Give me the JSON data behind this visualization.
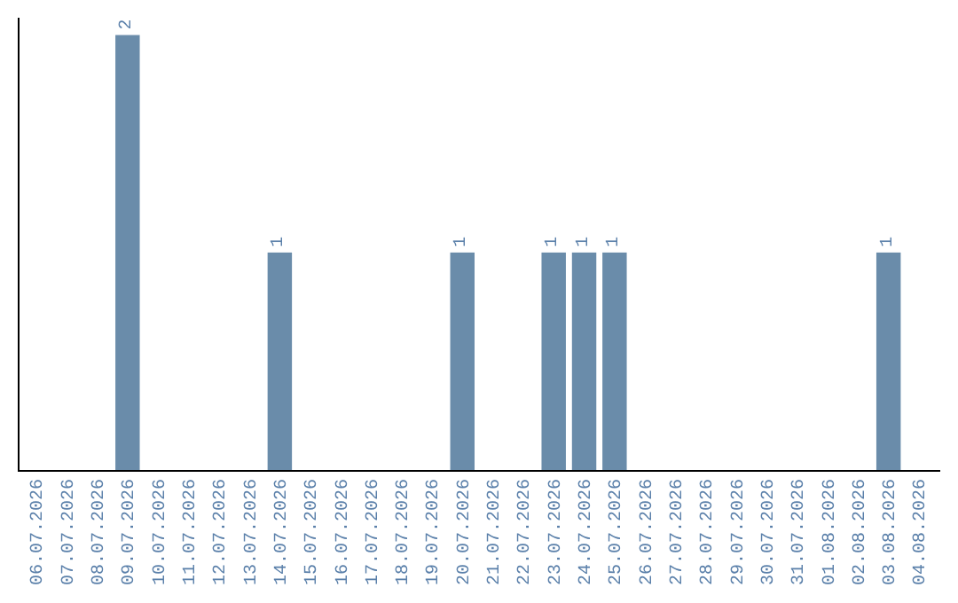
{
  "chart_data": {
    "type": "bar",
    "categories": [
      "06.07.2026",
      "07.07.2026",
      "08.07.2026",
      "09.07.2026",
      "10.07.2026",
      "11.07.2026",
      "12.07.2026",
      "13.07.2026",
      "14.07.2026",
      "15.07.2026",
      "16.07.2026",
      "17.07.2026",
      "18.07.2026",
      "19.07.2026",
      "20.07.2026",
      "21.07.2026",
      "22.07.2026",
      "23.07.2026",
      "24.07.2026",
      "25.07.2026",
      "26.07.2026",
      "27.07.2026",
      "28.07.2026",
      "29.07.2026",
      "30.07.2026",
      "31.07.2026",
      "01.08.2026",
      "02.08.2026",
      "03.08.2026",
      "04.08.2026"
    ],
    "values": [
      0,
      0,
      0,
      2,
      0,
      0,
      0,
      0,
      1,
      0,
      0,
      0,
      0,
      0,
      1,
      0,
      0,
      1,
      1,
      1,
      0,
      0,
      0,
      0,
      0,
      0,
      0,
      0,
      1,
      0
    ],
    "value_labels": [
      null,
      null,
      null,
      "2",
      null,
      null,
      null,
      null,
      "1",
      null,
      null,
      null,
      null,
      null,
      "1",
      null,
      null,
      "1",
      "1",
      "1",
      null,
      null,
      null,
      null,
      null,
      null,
      null,
      null,
      "1",
      null
    ],
    "color": "#6a8caa",
    "ylim": [
      0,
      2.08
    ],
    "tick_labels": "x"
  }
}
